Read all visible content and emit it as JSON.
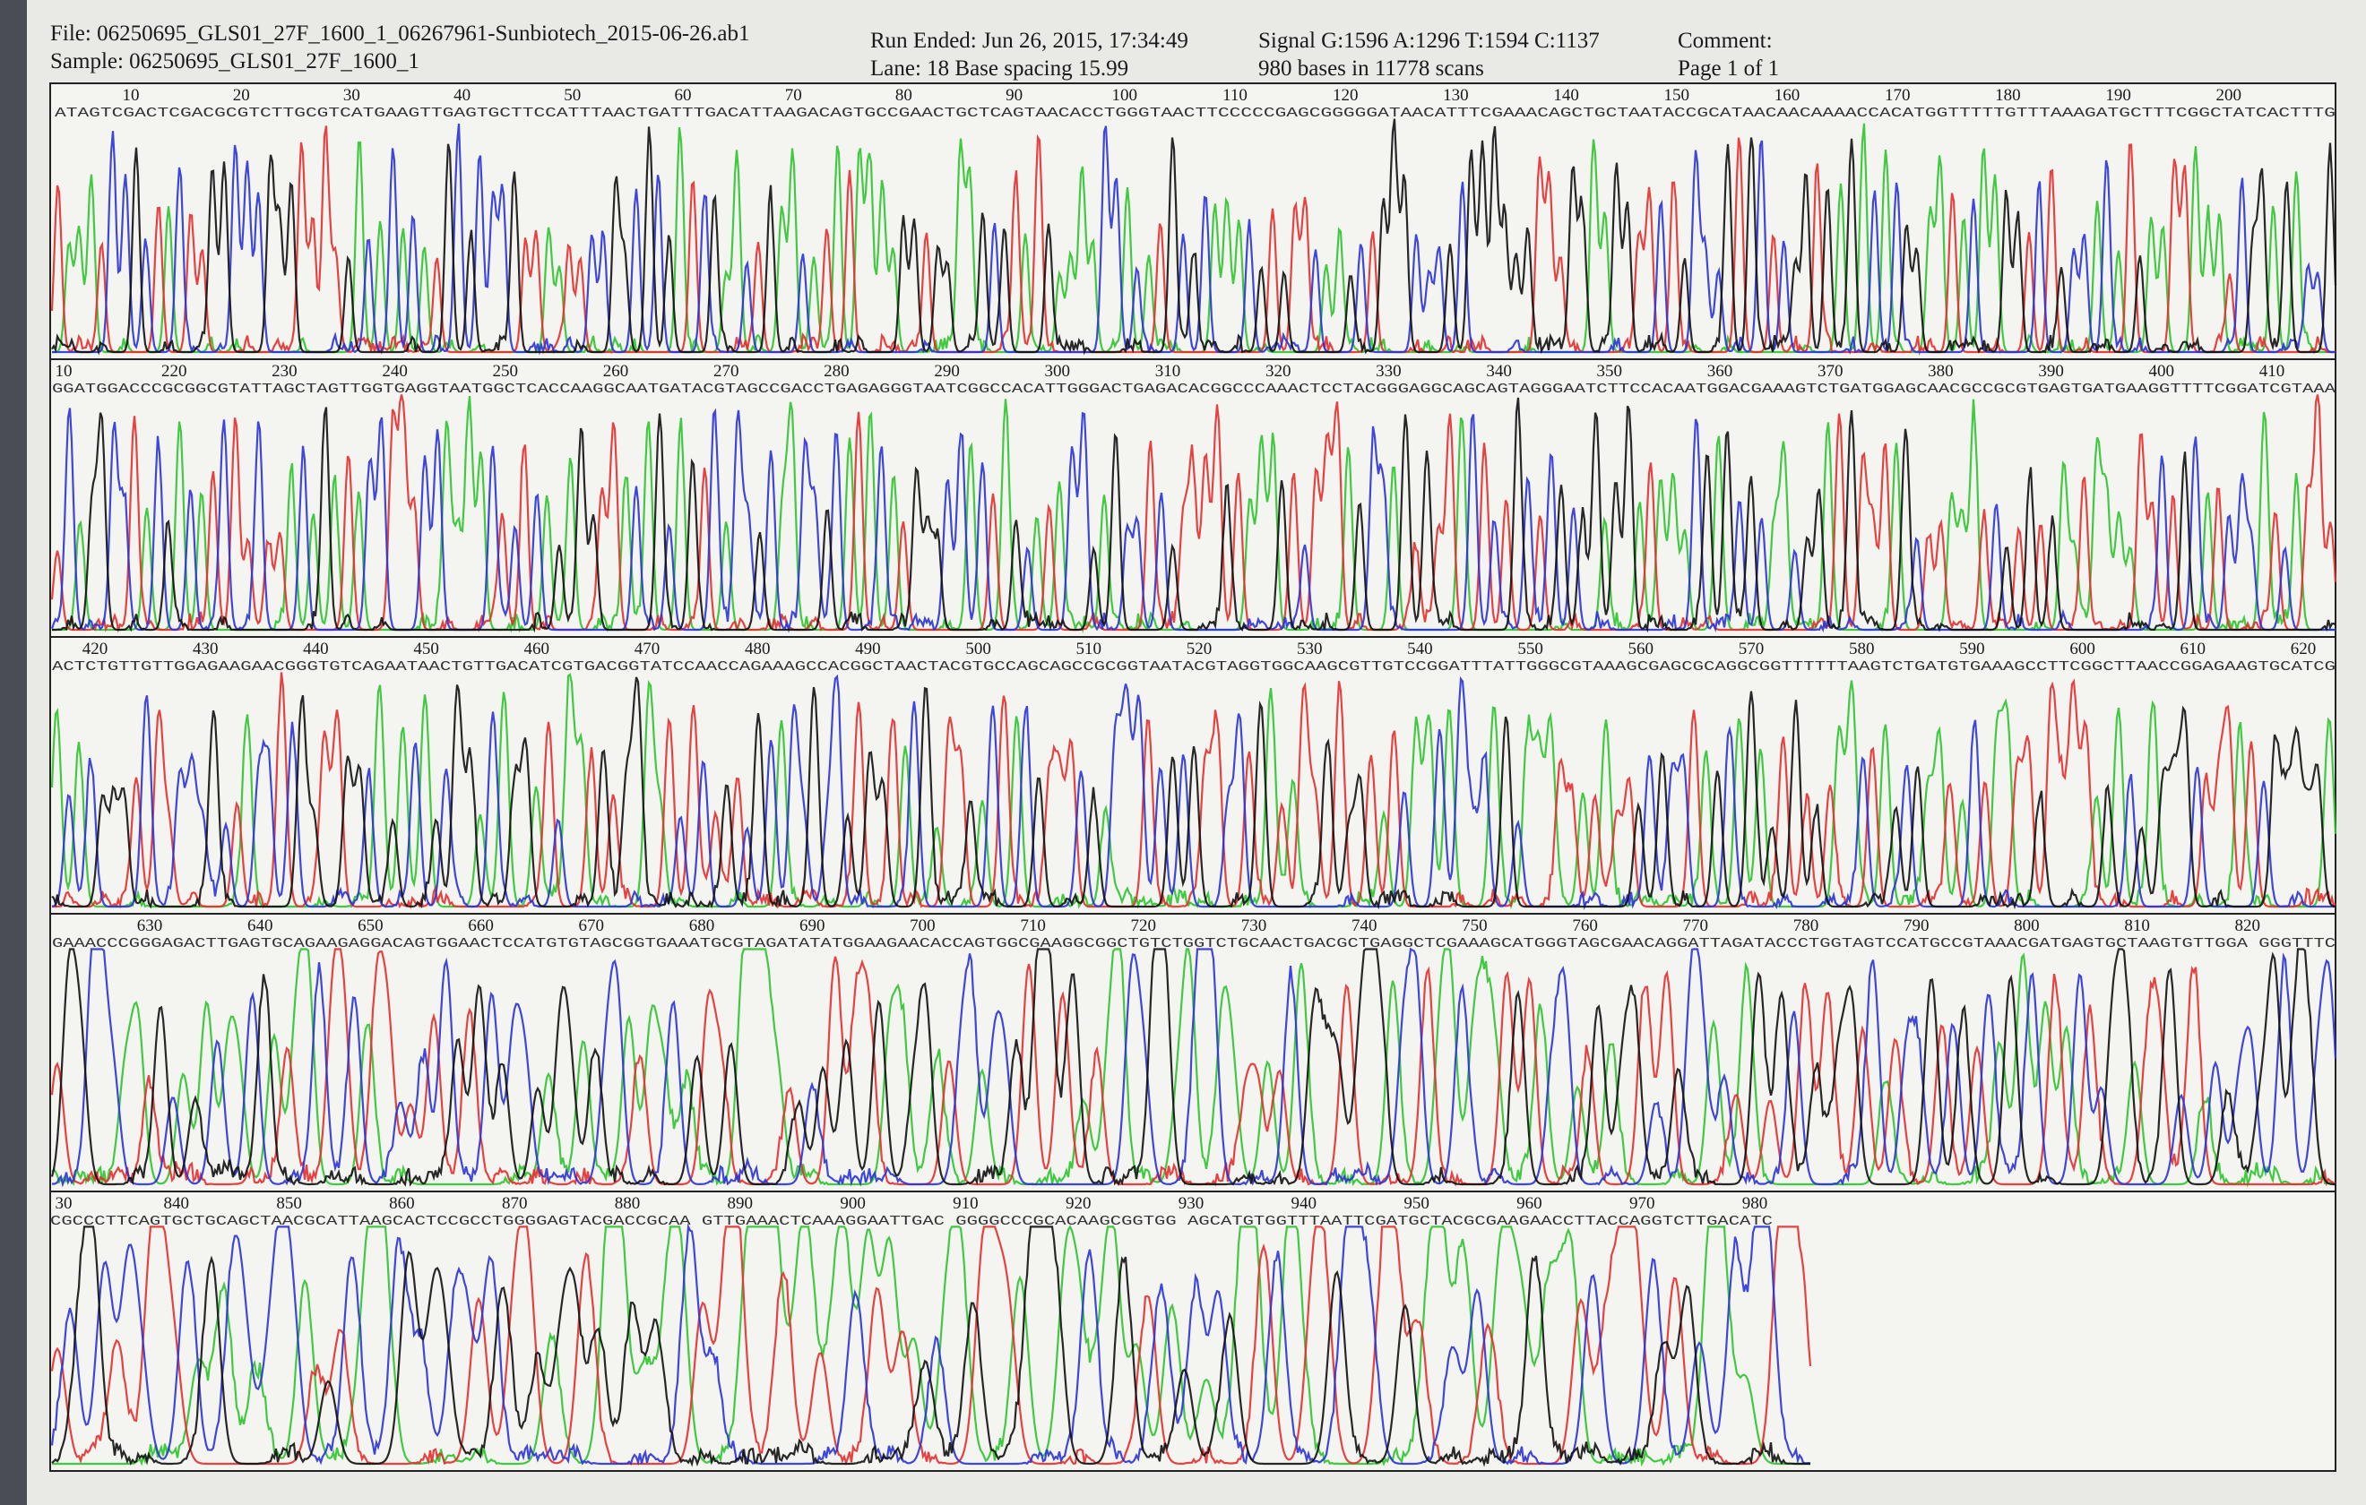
{
  "header": {
    "file": "File: 06250695_GLS01_27F_1600_1_06267961-Sunbiotech_2015-06-26.ab1",
    "sample": "Sample: 06250695_GLS01_27F_1600_1",
    "run_ended": "Run Ended: Jun 26, 2015, 17:34:49",
    "lane": "Lane: 18  Base spacing 15.99",
    "signal": "Signal G:1596 A:1296 T:1594 C:1137",
    "bases": "980 bases in 11778 scans",
    "comment": "Comment:",
    "page": "Page 1 of 1"
  },
  "rows": [
    {
      "positions": [
        "10",
        "20",
        "30",
        "40",
        "50",
        "60",
        "70",
        "80",
        "90",
        "100",
        "110",
        "120",
        "130",
        "140",
        "150",
        "160",
        "170",
        "180",
        "190",
        "200"
      ],
      "sequence": "ATAGTCGACTCGACGCGTCTTGCGTCATGAAGTTGAGTGCTTCCATTTAACTGATTTGACATTAAGACAGTGCCGAACTGCTCAGTAACACCTGGGTAACTTCCCCCGAGCGGGGGATAACATTTCGAAACAGCTGCTAATACCGCATAACAACAAAACCACATGGTTTTTGTTTAAAGATGCTTTCGGCTATCACTTTG"
    },
    {
      "positions": [
        "10",
        "220",
        "230",
        "240",
        "250",
        "260",
        "270",
        "280",
        "290",
        "300",
        "310",
        "320",
        "330",
        "340",
        "350",
        "360",
        "370",
        "380",
        "390",
        "400",
        "410"
      ],
      "sequence": "GGATGGACCCGCGGCGTATTAGCTAGTTGGTGAGGTAATGGCTCACCAAGGCAATGATACGTAGCCGACCTGAGAGGGTAATCGGCCACATTGGGACTGAGACACGGCCCAAACTCCTACGGGAGGCAGCAGTAGGGAATCTTCCACAATGGACGAAAGTCTGATGGAGCAACGCCGCGTGAGTGATGAAGGTTTTCGGATCGTAAA"
    },
    {
      "positions": [
        "420",
        "430",
        "440",
        "450",
        "460",
        "470",
        "480",
        "490",
        "500",
        "510",
        "520",
        "530",
        "540",
        "550",
        "560",
        "570",
        "580",
        "590",
        "600",
        "610",
        "620"
      ],
      "sequence": "ACTCTGTTGTTGGAGAAGAACGGGTGTCAGAATAACTGTTGACATCGTGACGGTATCCAACCAGAAAGCCACGGCTAACTACGTGCCAGCAGCCGCGGTAATACGTAGGTGGCAAGCGTTGTCCGGATTTATTGGGCGTAAAGCGAGCGCAGGCGGTTTTTTAAGTCTGATGTGAAAGCCTTCGGCTTAACCGGAGAAGTGCATCG"
    },
    {
      "positions": [
        "630",
        "640",
        "650",
        "660",
        "670",
        "680",
        "690",
        "700",
        "710",
        "720",
        "730",
        "740",
        "750",
        "760",
        "770",
        "780",
        "790",
        "800",
        "810",
        "820"
      ],
      "sequence": "GAAACCCGGGAGACTTGAGTGCAGAAGAGGACAGTGGAACTCCATGTGTAGCGGTGAAATGCGTAGATATATGGAAGAACACCAGTGGCGAAGGCGGCTGTCTGGTCTGCAACTGACGCTGAGGCTCGAAAGCATGGGTAGCGAACAGGATTAGATACCCTGGTAGTCCATGCCGTAAACGATGAGTGCTAAGTGTTGGA GGGTTTC"
    },
    {
      "positions": [
        "30",
        "840",
        "850",
        "860",
        "870",
        "880",
        "890",
        "900",
        "910",
        "920",
        "930",
        "940",
        "950",
        "960",
        "970",
        "980"
      ],
      "sequence": "CGCCCTTCAGTGCTGCAGCTAACGCATTAAGCACTCCGCCTGGGGAGTACGACCGCAA GTTGAAACTCAAAGGAATTGAC GGGGCCCGCACAAGCGGTGG AGCATGTGGTTTAATTCGATGCTACGCGAAGAACCTTACCAGGTCTTGACATC"
    }
  ]
}
